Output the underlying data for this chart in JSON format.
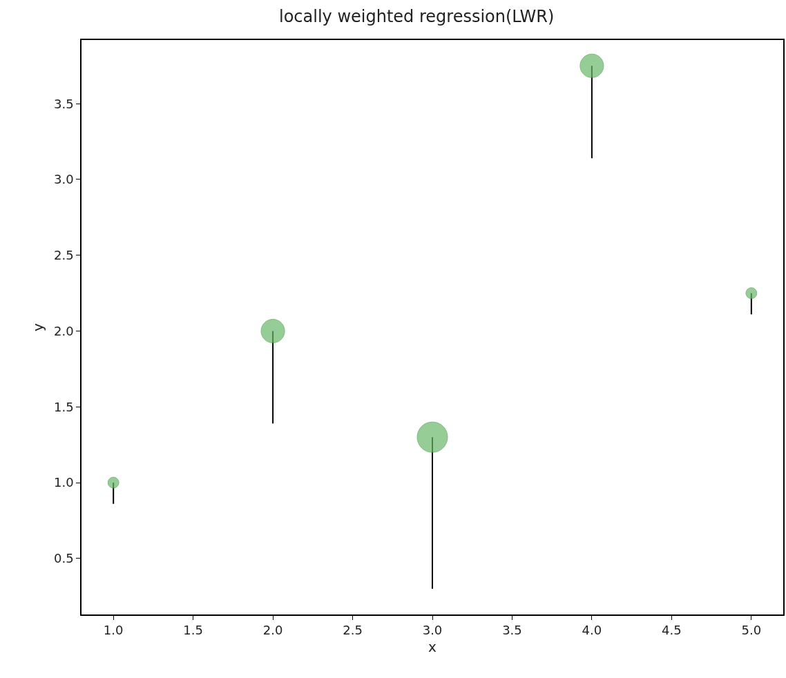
{
  "chart_data": {
    "type": "bubble",
    "title": "locally weighted regression(LWR)",
    "xlabel": "x",
    "ylabel": "y",
    "x": [
      1.0,
      2.0,
      3.0,
      4.0,
      5.0
    ],
    "values": [
      1.0,
      2.0,
      1.3,
      3.75,
      2.25
    ],
    "sizes": [
      0.13,
      0.6,
      1,
      0.6,
      0.13
    ],
    "errors": [
      [
        0.86,
        1.0
      ],
      [
        1.39,
        2.0
      ],
      [
        0.3,
        1.3
      ],
      [
        3.14,
        3.75
      ],
      [
        2.11,
        2.25
      ]
    ],
    "color": "#6ab96a",
    "xlim": [
      0.8,
      5.2
    ],
    "xticks": [
      {
        "value": 1.0,
        "label": "1.0"
      },
      {
        "value": 1.5,
        "label": "1.5"
      },
      {
        "value": 2.0,
        "label": "2.0"
      },
      {
        "value": 2.5,
        "label": "2.5"
      },
      {
        "value": 3.0,
        "label": "3.0"
      },
      {
        "value": 3.5,
        "label": "3.5"
      },
      {
        "value": 4.0,
        "label": "4.0"
      },
      {
        "value": 4.5,
        "label": "4.5"
      },
      {
        "value": 5.0,
        "label": "5.0"
      }
    ],
    "ylim": [
      0.13,
      3.92
    ],
    "yticks": [
      0.5,
      {
        "value": 1.0,
        "label": "1.0"
      },
      1.5,
      {
        "value": 2.0,
        "label": "2.0"
      },
      2.5,
      {
        "value": 3.0,
        "label": "3.0"
      },
      3.5
    ]
  }
}
